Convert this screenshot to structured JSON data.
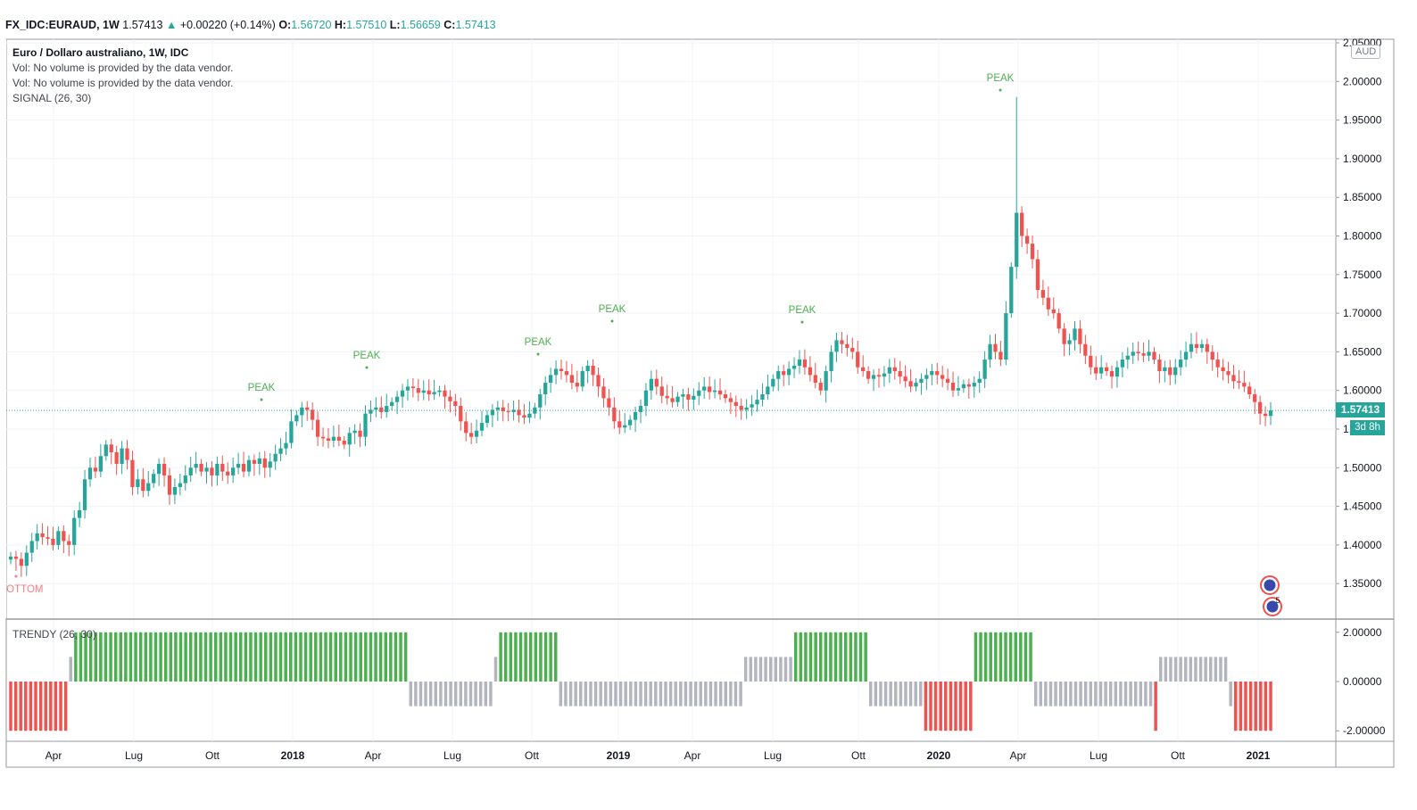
{
  "header": {
    "symbol": "FX_IDC:EURAUD, 1W",
    "last": "1.57413",
    "change_arrow": "▲",
    "change": "+0.00220 (+0.14%)",
    "o_label": "O:",
    "o": "1.56720",
    "h_label": "H:",
    "h": "1.57510",
    "l_label": "L:",
    "l": "1.56659",
    "c_label": "C:",
    "c": "1.57413"
  },
  "legend": {
    "title": "Euro / Dollaro australiano, 1W, IDC",
    "vol1": "Vol: No volume is provided by the data vendor.",
    "vol2": "Vol: No volume is provided by the data vendor.",
    "signal": "SIGNAL (26, 30)"
  },
  "trendy_title": "TRENDY (26, 30)",
  "currency_badge": "AUD",
  "price_tag": "1.57413",
  "countdown": "3d 8h",
  "colors": {
    "up": "#26a69a",
    "down": "#ef5350",
    "peak": "#4caf50",
    "bottom": "#f77c80",
    "trend_up": "#4caf50",
    "trend_down": "#ef5350",
    "trend_neutral": "#b2b5be"
  },
  "chart_data": [
    {
      "type": "candlestick",
      "title": "Euro / Dollaro australiano, 1W, IDC",
      "ylim": [
        1.3,
        2.05
      ],
      "y_ticks": [
        "2.05000",
        "2.00000",
        "1.95000",
        "1.90000",
        "1.85000",
        "1.80000",
        "1.75000",
        "1.70000",
        "1.65000",
        "1.60000",
        "1.55000",
        "1.50000",
        "1.45000",
        "1.40000",
        "1.35000"
      ],
      "x_ticks": [
        "Apr",
        "Lug",
        "Ott",
        "2018",
        "Apr",
        "Lug",
        "Ott",
        "2019",
        "Apr",
        "Lug",
        "Ott",
        "2020",
        "Apr",
        "Lug",
        "Ott",
        "2021"
      ],
      "last_price": 1.57413,
      "close_series": [
        1.385,
        1.382,
        1.373,
        1.39,
        1.405,
        1.415,
        1.41,
        1.408,
        1.4,
        1.418,
        1.405,
        1.4,
        1.435,
        1.445,
        1.485,
        1.5,
        1.495,
        1.515,
        1.53,
        1.52,
        1.505,
        1.525,
        1.51,
        1.475,
        1.485,
        1.47,
        1.48,
        1.492,
        1.505,
        1.49,
        1.465,
        1.475,
        1.48,
        1.49,
        1.5,
        1.505,
        1.495,
        1.5,
        1.49,
        1.505,
        1.495,
        1.49,
        1.5,
        1.505,
        1.495,
        1.51,
        1.505,
        1.512,
        1.5,
        1.508,
        1.518,
        1.525,
        1.532,
        1.56,
        1.568,
        1.578,
        1.575,
        1.562,
        1.54,
        1.538,
        1.535,
        1.54,
        1.535,
        1.53,
        1.545,
        1.548,
        1.54,
        1.57,
        1.575,
        1.578,
        1.572,
        1.58,
        1.585,
        1.592,
        1.6,
        1.605,
        1.603,
        1.597,
        1.6,
        1.595,
        1.598,
        1.6,
        1.592,
        1.586,
        1.58,
        1.56,
        1.545,
        1.54,
        1.548,
        1.558,
        1.568,
        1.575,
        1.578,
        1.573,
        1.572,
        1.575,
        1.568,
        1.565,
        1.57,
        1.578,
        1.595,
        1.61,
        1.62,
        1.628,
        1.625,
        1.62,
        1.61,
        1.605,
        1.625,
        1.632,
        1.62,
        1.605,
        1.59,
        1.578,
        1.56,
        1.552,
        1.555,
        1.562,
        1.572,
        1.58,
        1.6,
        1.615,
        1.605,
        1.593,
        1.59,
        1.585,
        1.592,
        1.595,
        1.588,
        1.593,
        1.6,
        1.605,
        1.598,
        1.6,
        1.595,
        1.59,
        1.585,
        1.58,
        1.575,
        1.578,
        1.582,
        1.588,
        1.595,
        1.605,
        1.615,
        1.625,
        1.62,
        1.628,
        1.632,
        1.64,
        1.63,
        1.62,
        1.61,
        1.6,
        1.625,
        1.65,
        1.665,
        1.66,
        1.655,
        1.65,
        1.63,
        1.625,
        1.615,
        1.62,
        1.618,
        1.622,
        1.63,
        1.625,
        1.618,
        1.612,
        1.605,
        1.61,
        1.615,
        1.62,
        1.625,
        1.62,
        1.615,
        1.61,
        1.6,
        1.603,
        1.608,
        1.605,
        1.61,
        1.615,
        1.64,
        1.66,
        1.65,
        1.64,
        1.7,
        1.76,
        1.83,
        1.8,
        1.79,
        1.77,
        1.73,
        1.72,
        1.705,
        1.7,
        1.68,
        1.66,
        1.665,
        1.68,
        1.66,
        1.645,
        1.63,
        1.622,
        1.63,
        1.625,
        1.618,
        1.63,
        1.64,
        1.645,
        1.65,
        1.648,
        1.645,
        1.65,
        1.64,
        1.625,
        1.63,
        1.62,
        1.63,
        1.64,
        1.65,
        1.66,
        1.655,
        1.66,
        1.65,
        1.64,
        1.63,
        1.625,
        1.62,
        1.612,
        1.61,
        1.605,
        1.595,
        1.585,
        1.57,
        1.567,
        1.57413
      ],
      "annotations": [
        {
          "text": "PEAK",
          "x_date": "2017-11"
        },
        {
          "text": "PEAK",
          "x_date": "2018-03"
        },
        {
          "text": "PEAK",
          "x_date": "2018-09"
        },
        {
          "text": "PEAK",
          "x_date": "2018-12"
        },
        {
          "text": "PEAK",
          "x_date": "2019-08"
        },
        {
          "text": "PEAK",
          "x_date": "2020-03"
        },
        {
          "text": "BOTTOM",
          "x_date": "2017-02"
        }
      ],
      "grid": true
    },
    {
      "type": "bar",
      "title": "TRENDY (26, 30)",
      "ylim": [
        -2.5,
        2.5
      ],
      "y_ticks": [
        "2.00000",
        "0.00000",
        "-2.00000"
      ],
      "segments": [
        {
          "state": "down",
          "count": 12
        },
        {
          "state": "neutral_up",
          "count": 1
        },
        {
          "state": "up",
          "count": 67
        },
        {
          "state": "neutral_down",
          "count": 17
        },
        {
          "state": "neutral_up",
          "count": 1
        },
        {
          "state": "up",
          "count": 12
        },
        {
          "state": "neutral_down",
          "count": 37
        },
        {
          "state": "neutral_up",
          "count": 10
        },
        {
          "state": "up",
          "count": 15
        },
        {
          "state": "neutral_down",
          "count": 11
        },
        {
          "state": "down",
          "count": 10
        },
        {
          "state": "up",
          "count": 12
        },
        {
          "state": "neutral_down",
          "count": 24
        },
        {
          "state": "down",
          "count": 1
        },
        {
          "state": "neutral_up",
          "count": 14
        },
        {
          "state": "neutral_down",
          "count": 1
        },
        {
          "state": "down",
          "count": 8
        }
      ]
    }
  ]
}
